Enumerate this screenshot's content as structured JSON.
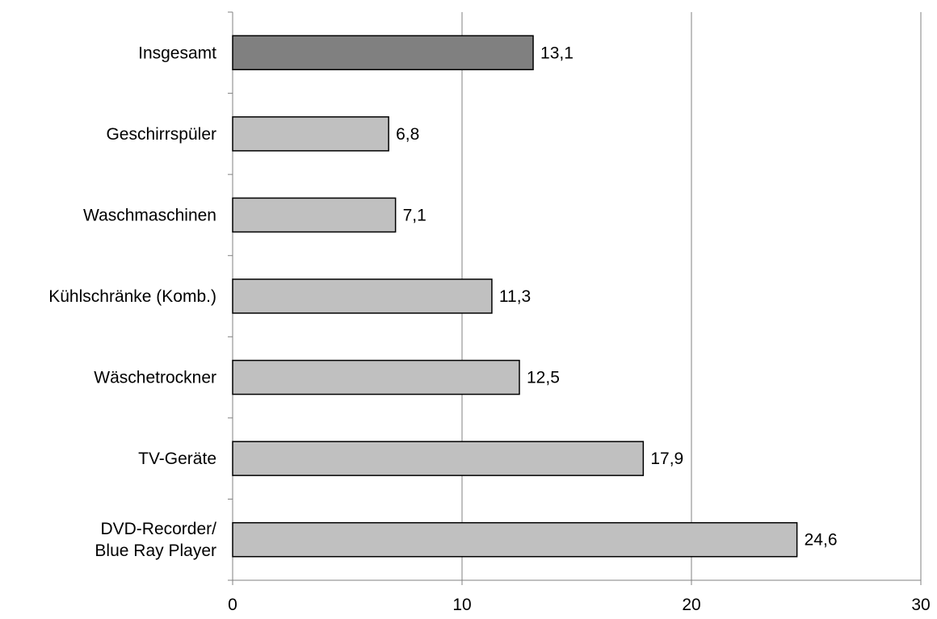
{
  "chart_data": {
    "type": "bar",
    "orientation": "horizontal",
    "title": "",
    "xlabel": "",
    "ylabel": "",
    "xlim": [
      0,
      30
    ],
    "xticks": [
      "0",
      "10",
      "20",
      "30"
    ],
    "xtick_values": [
      0,
      10,
      20,
      30
    ],
    "grid": "vertical gridlines at 10 and 20",
    "legend": "none",
    "categories": [
      [
        "Insgesamt"
      ],
      [
        "Geschirrspüler"
      ],
      [
        "Waschmaschinen"
      ],
      [
        "Kühlschränke (Komb.)"
      ],
      [
        "Wäschetrockner"
      ],
      [
        "TV-Geräte"
      ],
      [
        "DVD-Recorder/",
        "Blue Ray Player"
      ]
    ],
    "values": [
      13.1,
      6.8,
      7.1,
      11.3,
      12.5,
      17.9,
      24.6
    ],
    "value_labels": [
      "13,1",
      "6,8",
      "7,1",
      "11,3",
      "12,5",
      "17,9",
      "24,6"
    ],
    "colors": {
      "highlight": "#808080",
      "bar": "#c0c0c0",
      "outline": "#000000",
      "grid": "#808080",
      "axis": "#808080"
    },
    "highlight_index": 0
  }
}
